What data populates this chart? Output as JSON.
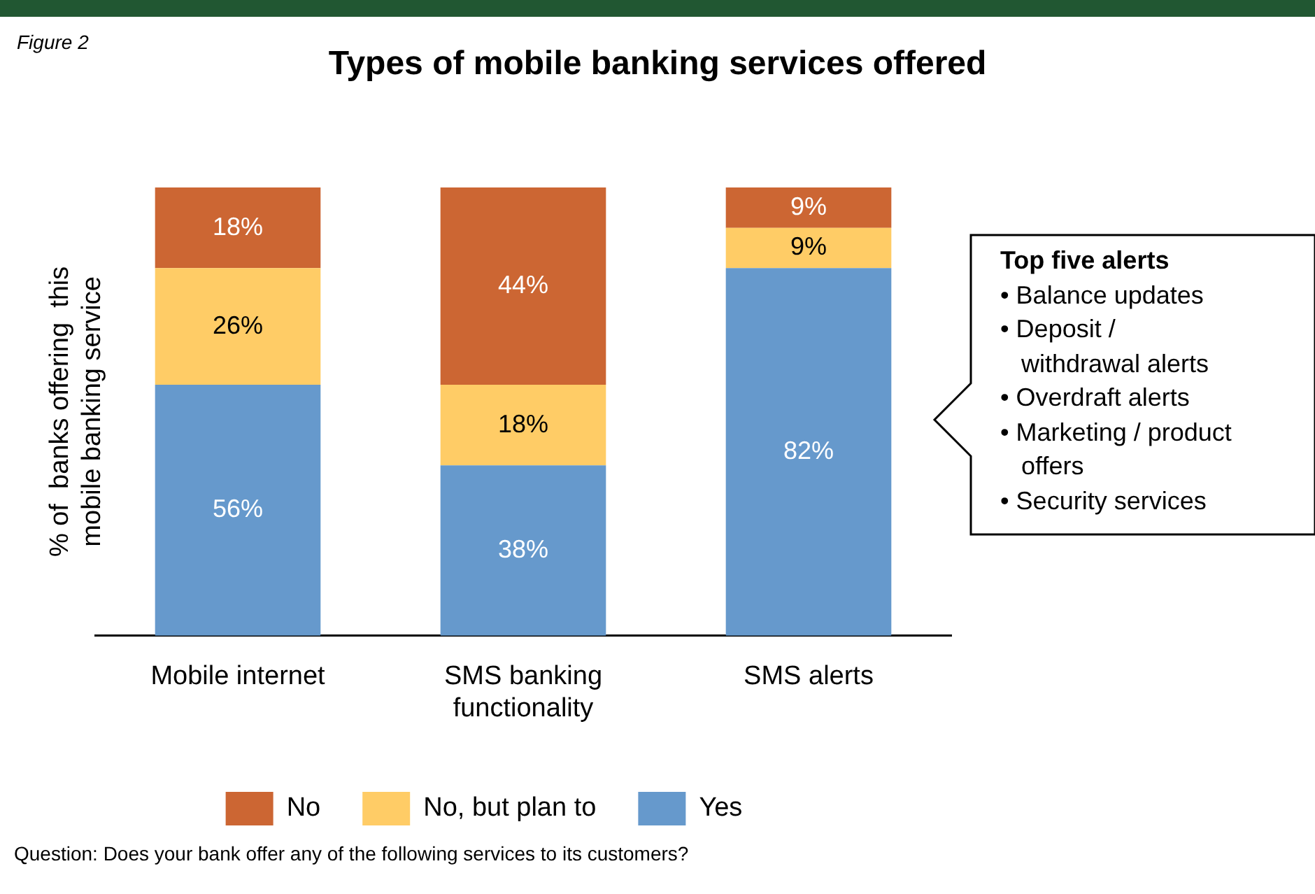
{
  "chart_data": {
    "type": "bar",
    "title": "Types of mobile banking services offered",
    "ylabel": "% of  banks offering  this mobile banking service",
    "categories": [
      "Mobile internet",
      "SMS banking functionality",
      "SMS alerts"
    ],
    "stacked": true,
    "legend": "bottom",
    "grid": false,
    "tick_labels": "x",
    "series": [
      {
        "name": "Yes",
        "color": "#6699cc",
        "values": [
          56,
          38,
          82
        ],
        "value_labels": [
          "56%",
          "38%",
          "82%"
        ]
      },
      {
        "name": "No, but plan to",
        "color": "#ffcc66",
        "values": [
          26,
          18,
          9
        ],
        "value_labels": [
          "26%",
          "18%",
          "9%"
        ]
      },
      {
        "name": "No",
        "color": "#cc6633",
        "values": [
          18,
          44,
          9
        ],
        "value_labels": [
          "18%",
          "44%",
          "9%"
        ]
      }
    ],
    "annotations": [
      "Figure 2",
      "Top five alerts\n• Balance updates\n• Deposit /\n   withdrawal alerts\n• Overdraft alerts\n• Marketing / product\n   offers\n• Security services",
      "Question: Does your bank offer any of the following services to its customers?"
    ]
  }
}
